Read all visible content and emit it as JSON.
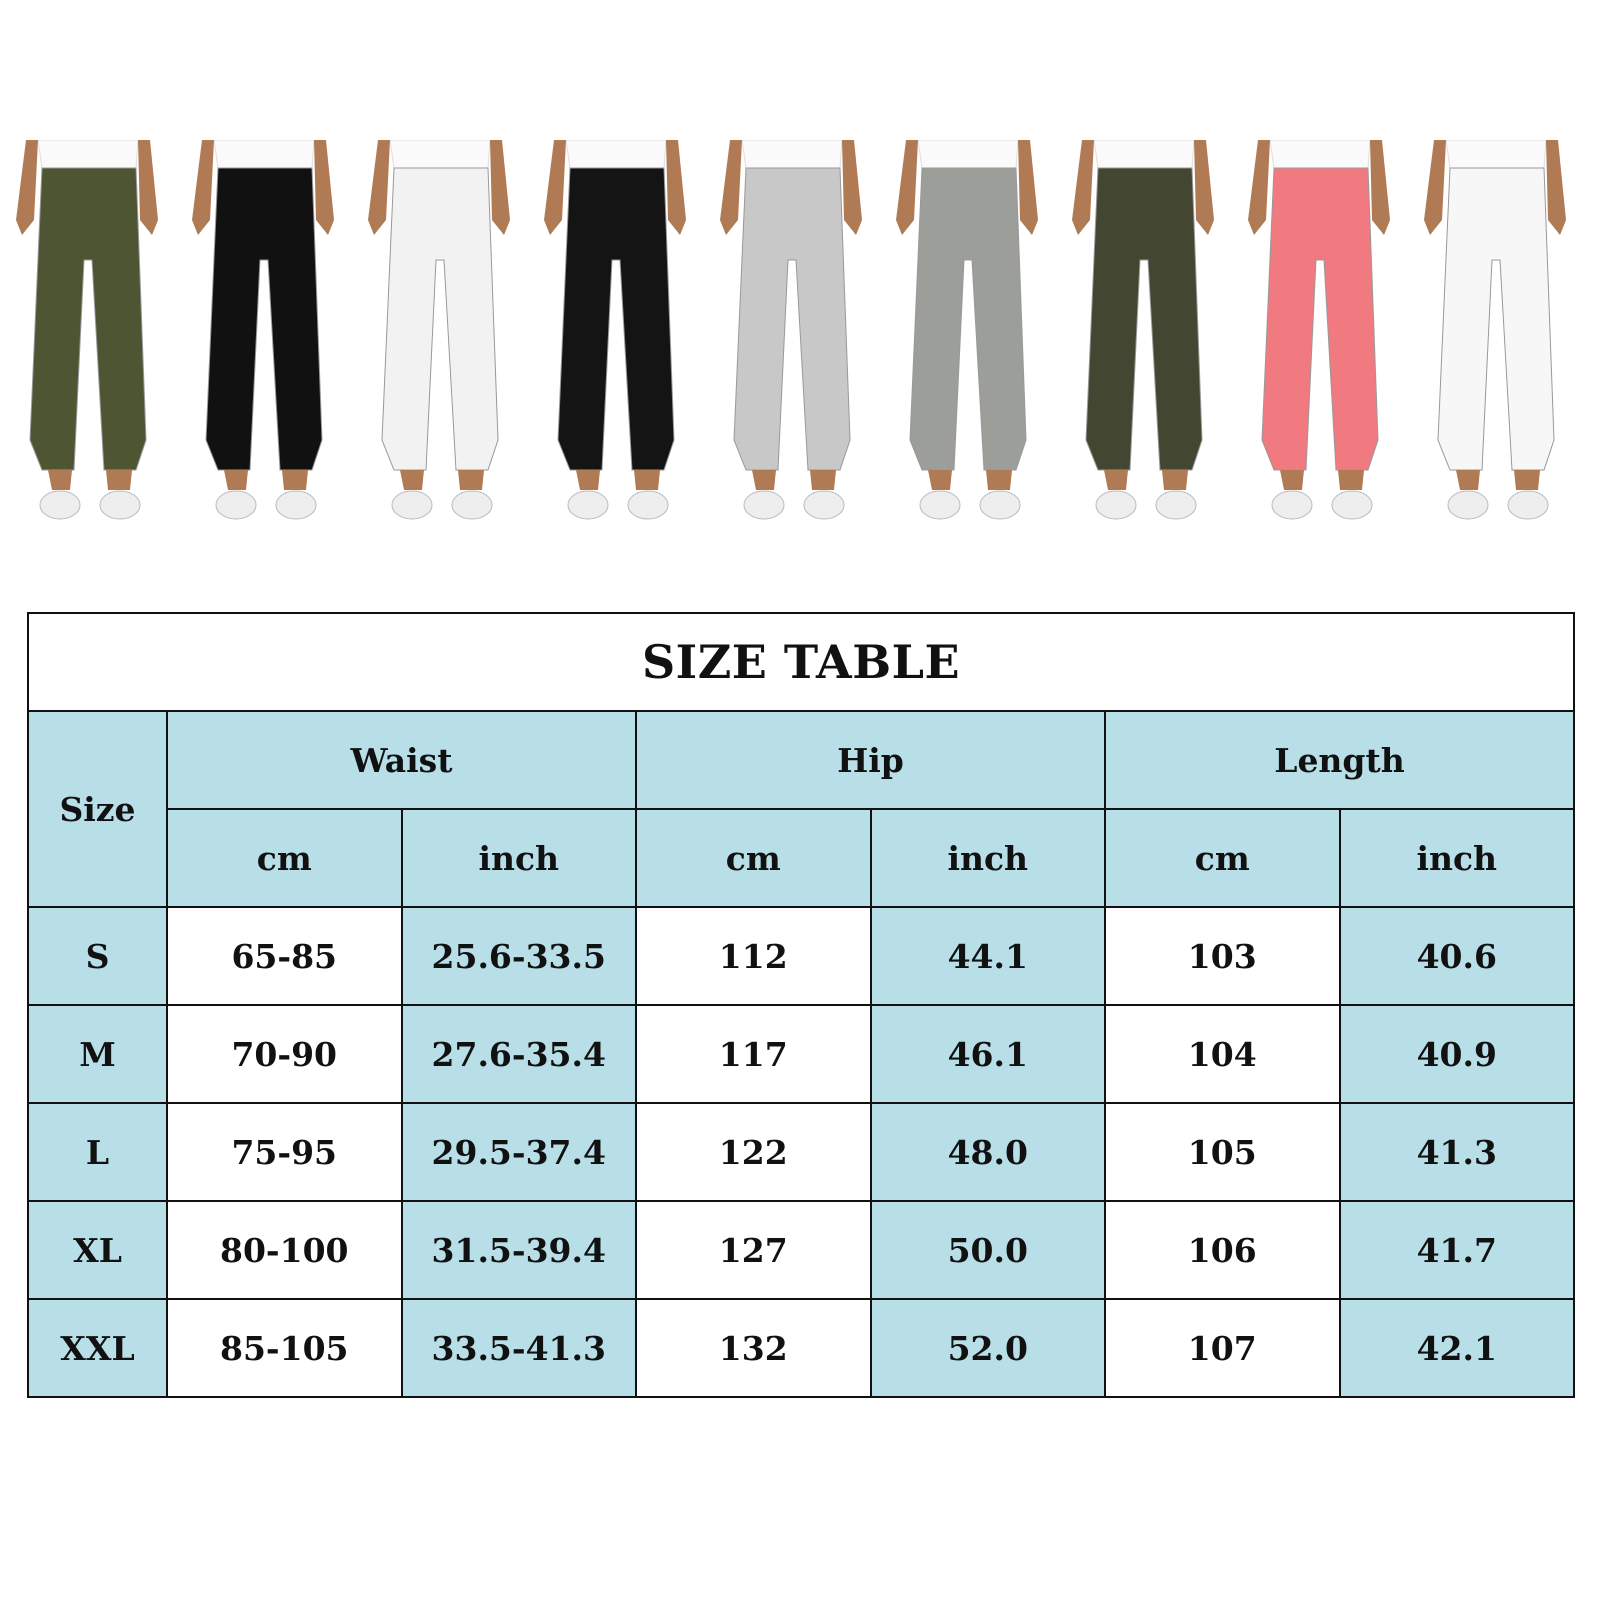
{
  "product_colors": [
    "#4d5533",
    "#111111",
    "#f2f2f2",
    "#141414",
    "#c8c8c8",
    "#9c9e99",
    "#434630",
    "#f07a80",
    "#f7f7f7"
  ],
  "table": {
    "title": "SIZE TABLE",
    "size_header": "Size",
    "groups": [
      "Waist",
      "Hip",
      "Length"
    ],
    "units": [
      "cm",
      "inch",
      "cm",
      "inch",
      "cm",
      "inch"
    ],
    "rows": [
      {
        "size": "S",
        "values": [
          "65-85",
          "25.6-33.5",
          "112",
          "44.1",
          "103",
          "40.6"
        ]
      },
      {
        "size": "M",
        "values": [
          "70-90",
          "27.6-35.4",
          "117",
          "46.1",
          "104",
          "40.9"
        ]
      },
      {
        "size": "L",
        "values": [
          "75-95",
          "29.5-37.4",
          "122",
          "48.0",
          "105",
          "41.3"
        ]
      },
      {
        "size": "XL",
        "values": [
          "80-100",
          "31.5-39.4",
          "127",
          "50.0",
          "106",
          "41.7"
        ]
      },
      {
        "size": "XXL",
        "values": [
          "85-105",
          "33.5-41.3",
          "132",
          "52.0",
          "107",
          "42.1"
        ]
      }
    ],
    "colors": {
      "header_bg": "#b8dfe8",
      "border": "#111111"
    }
  }
}
